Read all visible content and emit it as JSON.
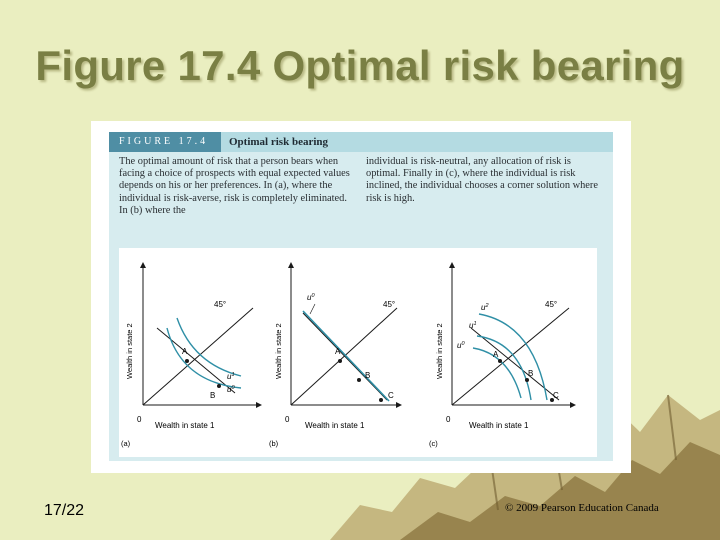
{
  "slide": {
    "title": "Figure 17.4 Optimal risk bearing",
    "page_number": "17/22",
    "copyright": "© 2009 Pearson Education Canada"
  },
  "figure": {
    "label": "FIGURE 17.4",
    "heading": "Optimal risk bearing",
    "caption_left": "The optimal amount of risk that a person bears when facing a choice of prospects with equal expected values depends on his or her preferences. In (a), where the individual is risk-averse, risk is completely eliminated. In (b) where the",
    "caption_right": "individual is risk-neutral, any allocation of risk is optimal. Finally in (c), where the individual is risk inclined, the individual chooses a corner solution where risk is high."
  },
  "panels": [
    {
      "id": "a",
      "panel_label": "(a)",
      "xlabel": "Wealth in state 1",
      "ylabel": "Wealth in state 2",
      "origin": "0",
      "ray_label": "45°",
      "points": [
        "A",
        "B"
      ],
      "curves": [
        "u",
        "1",
        "u",
        "0"
      ]
    },
    {
      "id": "b",
      "panel_label": "(b)",
      "xlabel": "Wealth in state 1",
      "ylabel": "Wealth in state 2",
      "origin": "0",
      "ray_label": "45°",
      "points": [
        "A",
        "B",
        "C"
      ],
      "curves": [
        "u",
        "0"
      ]
    },
    {
      "id": "c",
      "panel_label": "(c)",
      "xlabel": "Wealth in state 1",
      "ylabel": "Wealth in state 2",
      "origin": "0",
      "ray_label": "45°",
      "points": [
        "A",
        "B",
        "C"
      ],
      "curves": [
        "u",
        "2",
        "u",
        "1",
        "u",
        "0"
      ]
    }
  ],
  "colors": {
    "background": "#eaeec0",
    "title": "#7a7f44",
    "figure_header": "#4f8ea4",
    "figure_tint": "#d7ecef",
    "curve": "#2f8fa6",
    "axis": "#1a1a1a"
  }
}
